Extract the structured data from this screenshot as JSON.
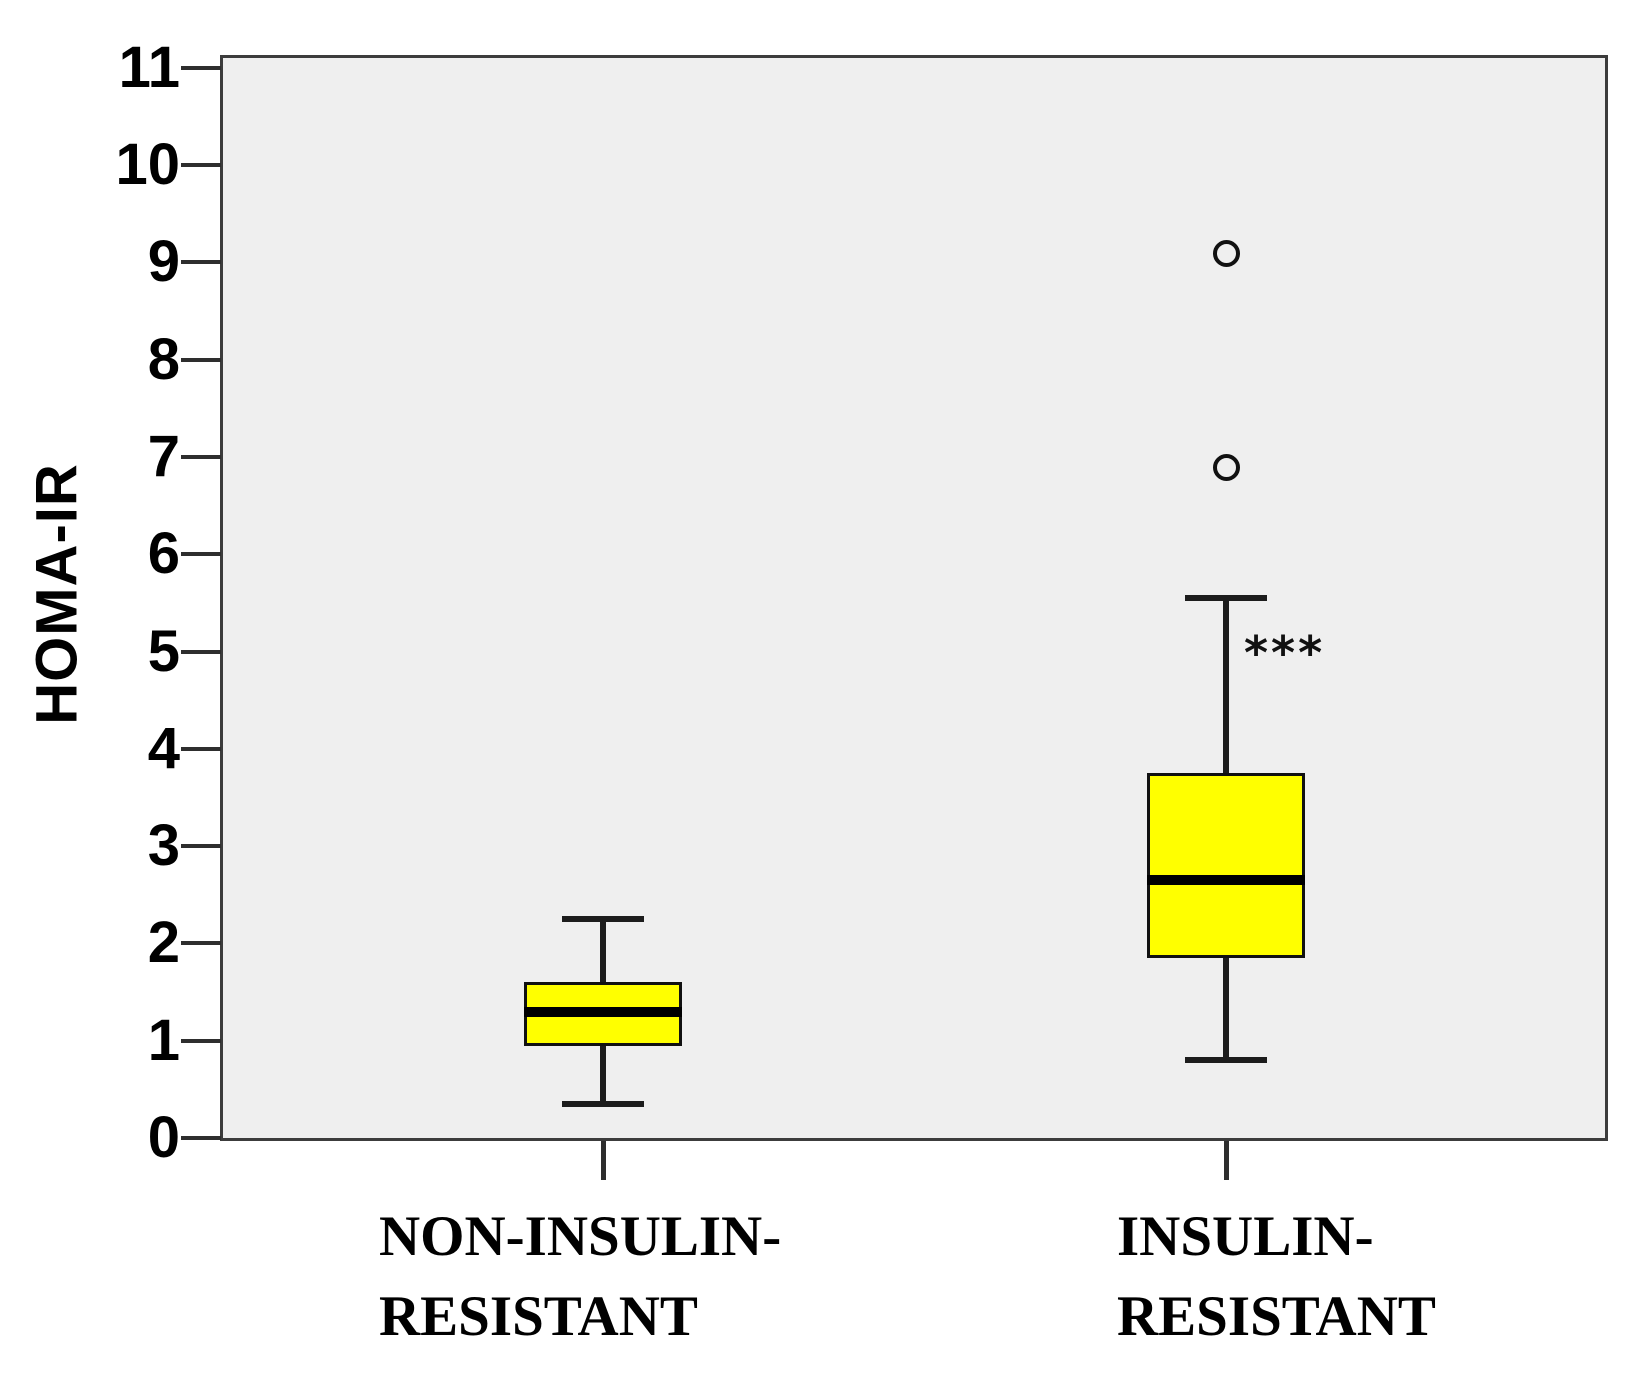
{
  "chart_data": {
    "type": "boxplot",
    "title": "",
    "ylabel": "HOMA-IR",
    "xlabel": "",
    "ylim": [
      0,
      11
    ],
    "y_ticks": [
      0,
      1,
      2,
      3,
      4,
      5,
      6,
      7,
      8,
      9,
      10,
      11
    ],
    "grid": false,
    "legend": "none",
    "categories": [
      "NON-INSULIN-RESISTANT",
      "INSULIN-RESISTANT"
    ],
    "groups": [
      {
        "label_lines": [
          "NON-INSULIN-",
          "RESISTANT"
        ],
        "whisker_low": 0.35,
        "q1": 0.95,
        "median": 1.3,
        "q3": 1.6,
        "whisker_high": 2.25,
        "outliers": [],
        "annotation": ""
      },
      {
        "label_lines": [
          "INSULIN-",
          "RESISTANT"
        ],
        "whisker_low": 0.8,
        "q1": 1.85,
        "median": 2.65,
        "q3": 3.75,
        "whisker_high": 5.55,
        "outliers": [
          6.9,
          9.1
        ],
        "annotation": "***"
      }
    ],
    "colors": {
      "box_fill": "#ffff00",
      "box_border": "#111111",
      "median": "#000000",
      "whisker": "#1c1c1c",
      "plot_bg": "#efefef",
      "frame": "#3c3c3c",
      "tick": "#2e2e2e",
      "text": "#000000"
    }
  }
}
